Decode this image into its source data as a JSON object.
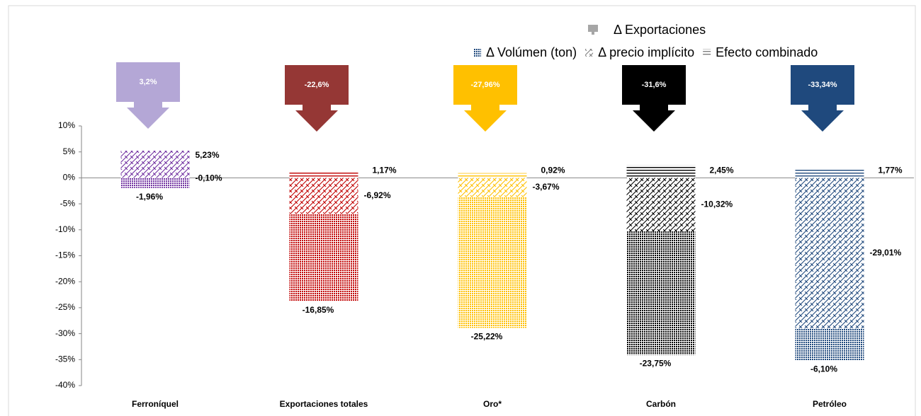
{
  "chart_data": {
    "type": "bar",
    "stacked": true,
    "categories": [
      "Ferroníquel",
      "Exportaciones totales",
      "Oro*",
      "Carbón",
      "Petróleo"
    ],
    "colors": [
      "#7030a0",
      "#c00000",
      "#ffc000",
      "#000000",
      "#1f497d"
    ],
    "series": [
      {
        "name": "Δ Volúmen (ton)",
        "pattern": "dots",
        "color": "#1f497d",
        "values": [
          -1.96,
          -16.85,
          -25.22,
          -23.75,
          -6.1
        ],
        "value_labels": [
          "-1,96%",
          "-16,85%",
          "-25,22%",
          "-23,75%",
          "-6,10%"
        ]
      },
      {
        "name": "Δ precio implícito",
        "pattern": "hatch",
        "color": "#7f7f7f",
        "values": [
          5.23,
          -6.92,
          -3.67,
          -10.32,
          -29.01
        ],
        "value_labels": [
          "5,23%",
          "-6,92%",
          "-3,67%",
          "-10,32%",
          "-29,01%"
        ]
      },
      {
        "name": "Efecto combinado",
        "pattern": "lines",
        "color": "#7f7f7f",
        "values": [
          -0.1,
          1.17,
          0.92,
          2.45,
          1.77
        ],
        "value_labels": [
          "-0,10%",
          "1,17%",
          "0,92%",
          "2,45%",
          "1,77%"
        ]
      }
    ],
    "exports": {
      "name": "Δ Exportaciones",
      "color": "#a6a6a6",
      "values": [
        3.2,
        -22.6,
        -27.96,
        -31.6,
        -33.34
      ],
      "value_labels": [
        "3,2%",
        "-22,6%",
        "-27,96%",
        "-31,6%",
        "-33,34%"
      ],
      "colors": [
        "#b4a7d6",
        "#953735",
        "#ffc000",
        "#000000",
        "#1f497d"
      ]
    },
    "ylim": [
      -40,
      10
    ],
    "yticks": [
      {
        "value": 10,
        "label": "10%"
      },
      {
        "value": 5,
        "label": "5%"
      },
      {
        "value": 0,
        "label": "0%"
      },
      {
        "value": -5,
        "label": "-5%"
      },
      {
        "value": -10,
        "label": "-10%"
      },
      {
        "value": -15,
        "label": "-15%"
      },
      {
        "value": -20,
        "label": "-20%"
      },
      {
        "value": -25,
        "label": "-25%"
      },
      {
        "value": -30,
        "label": "-30%"
      },
      {
        "value": -35,
        "label": "-35%"
      },
      {
        "value": -40,
        "label": "-40%"
      }
    ],
    "grid": false
  }
}
